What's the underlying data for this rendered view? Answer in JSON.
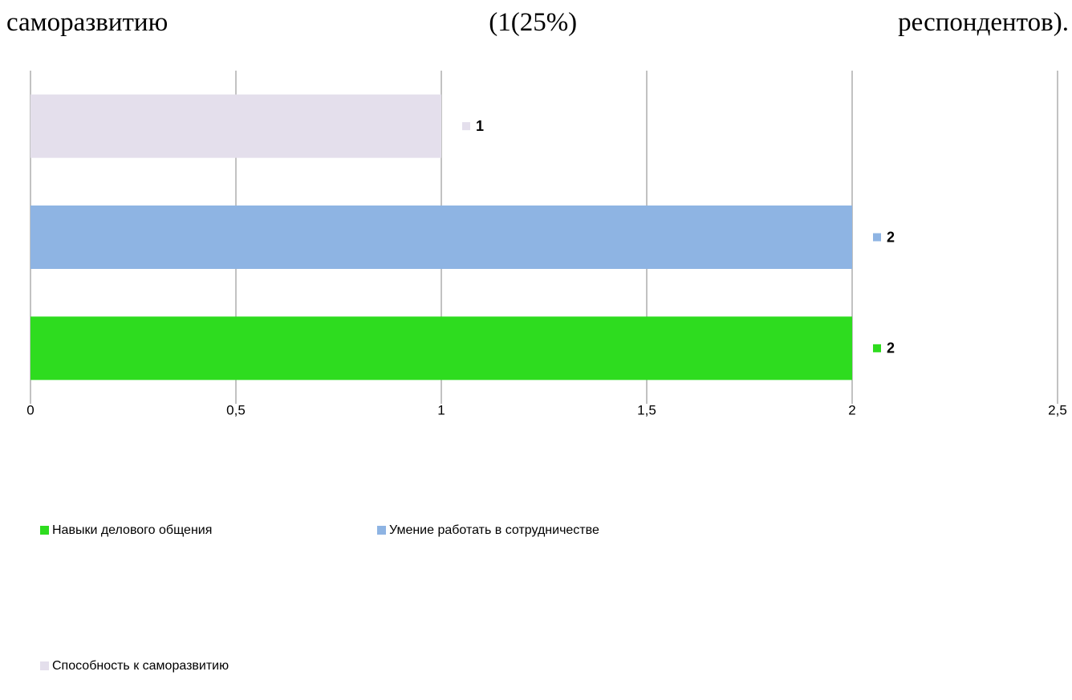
{
  "document": {
    "text": "саморазвитию (1(25%) респондентов)."
  },
  "chart_data": {
    "type": "bar",
    "orientation": "horizontal",
    "series": [
      {
        "name": "Навыки делового общения",
        "color": "#2edc1f",
        "values": [
          2
        ]
      },
      {
        "name": "Умение работать в сотрудничестве",
        "color": "#8eb4e3",
        "values": [
          2
        ]
      },
      {
        "name": "Способность к саморазвитию",
        "color": "#e4dfec",
        "values": [
          1
        ]
      }
    ],
    "xlim": [
      0,
      2.5
    ],
    "xticks": [
      0,
      {
        "value": 0.5,
        "label": "0,5"
      },
      1,
      {
        "value": 1.5,
        "label": "1,5"
      },
      2,
      {
        "value": 2.5,
        "label": "2,5"
      }
    ],
    "grid": true,
    "legend": "bottom"
  }
}
